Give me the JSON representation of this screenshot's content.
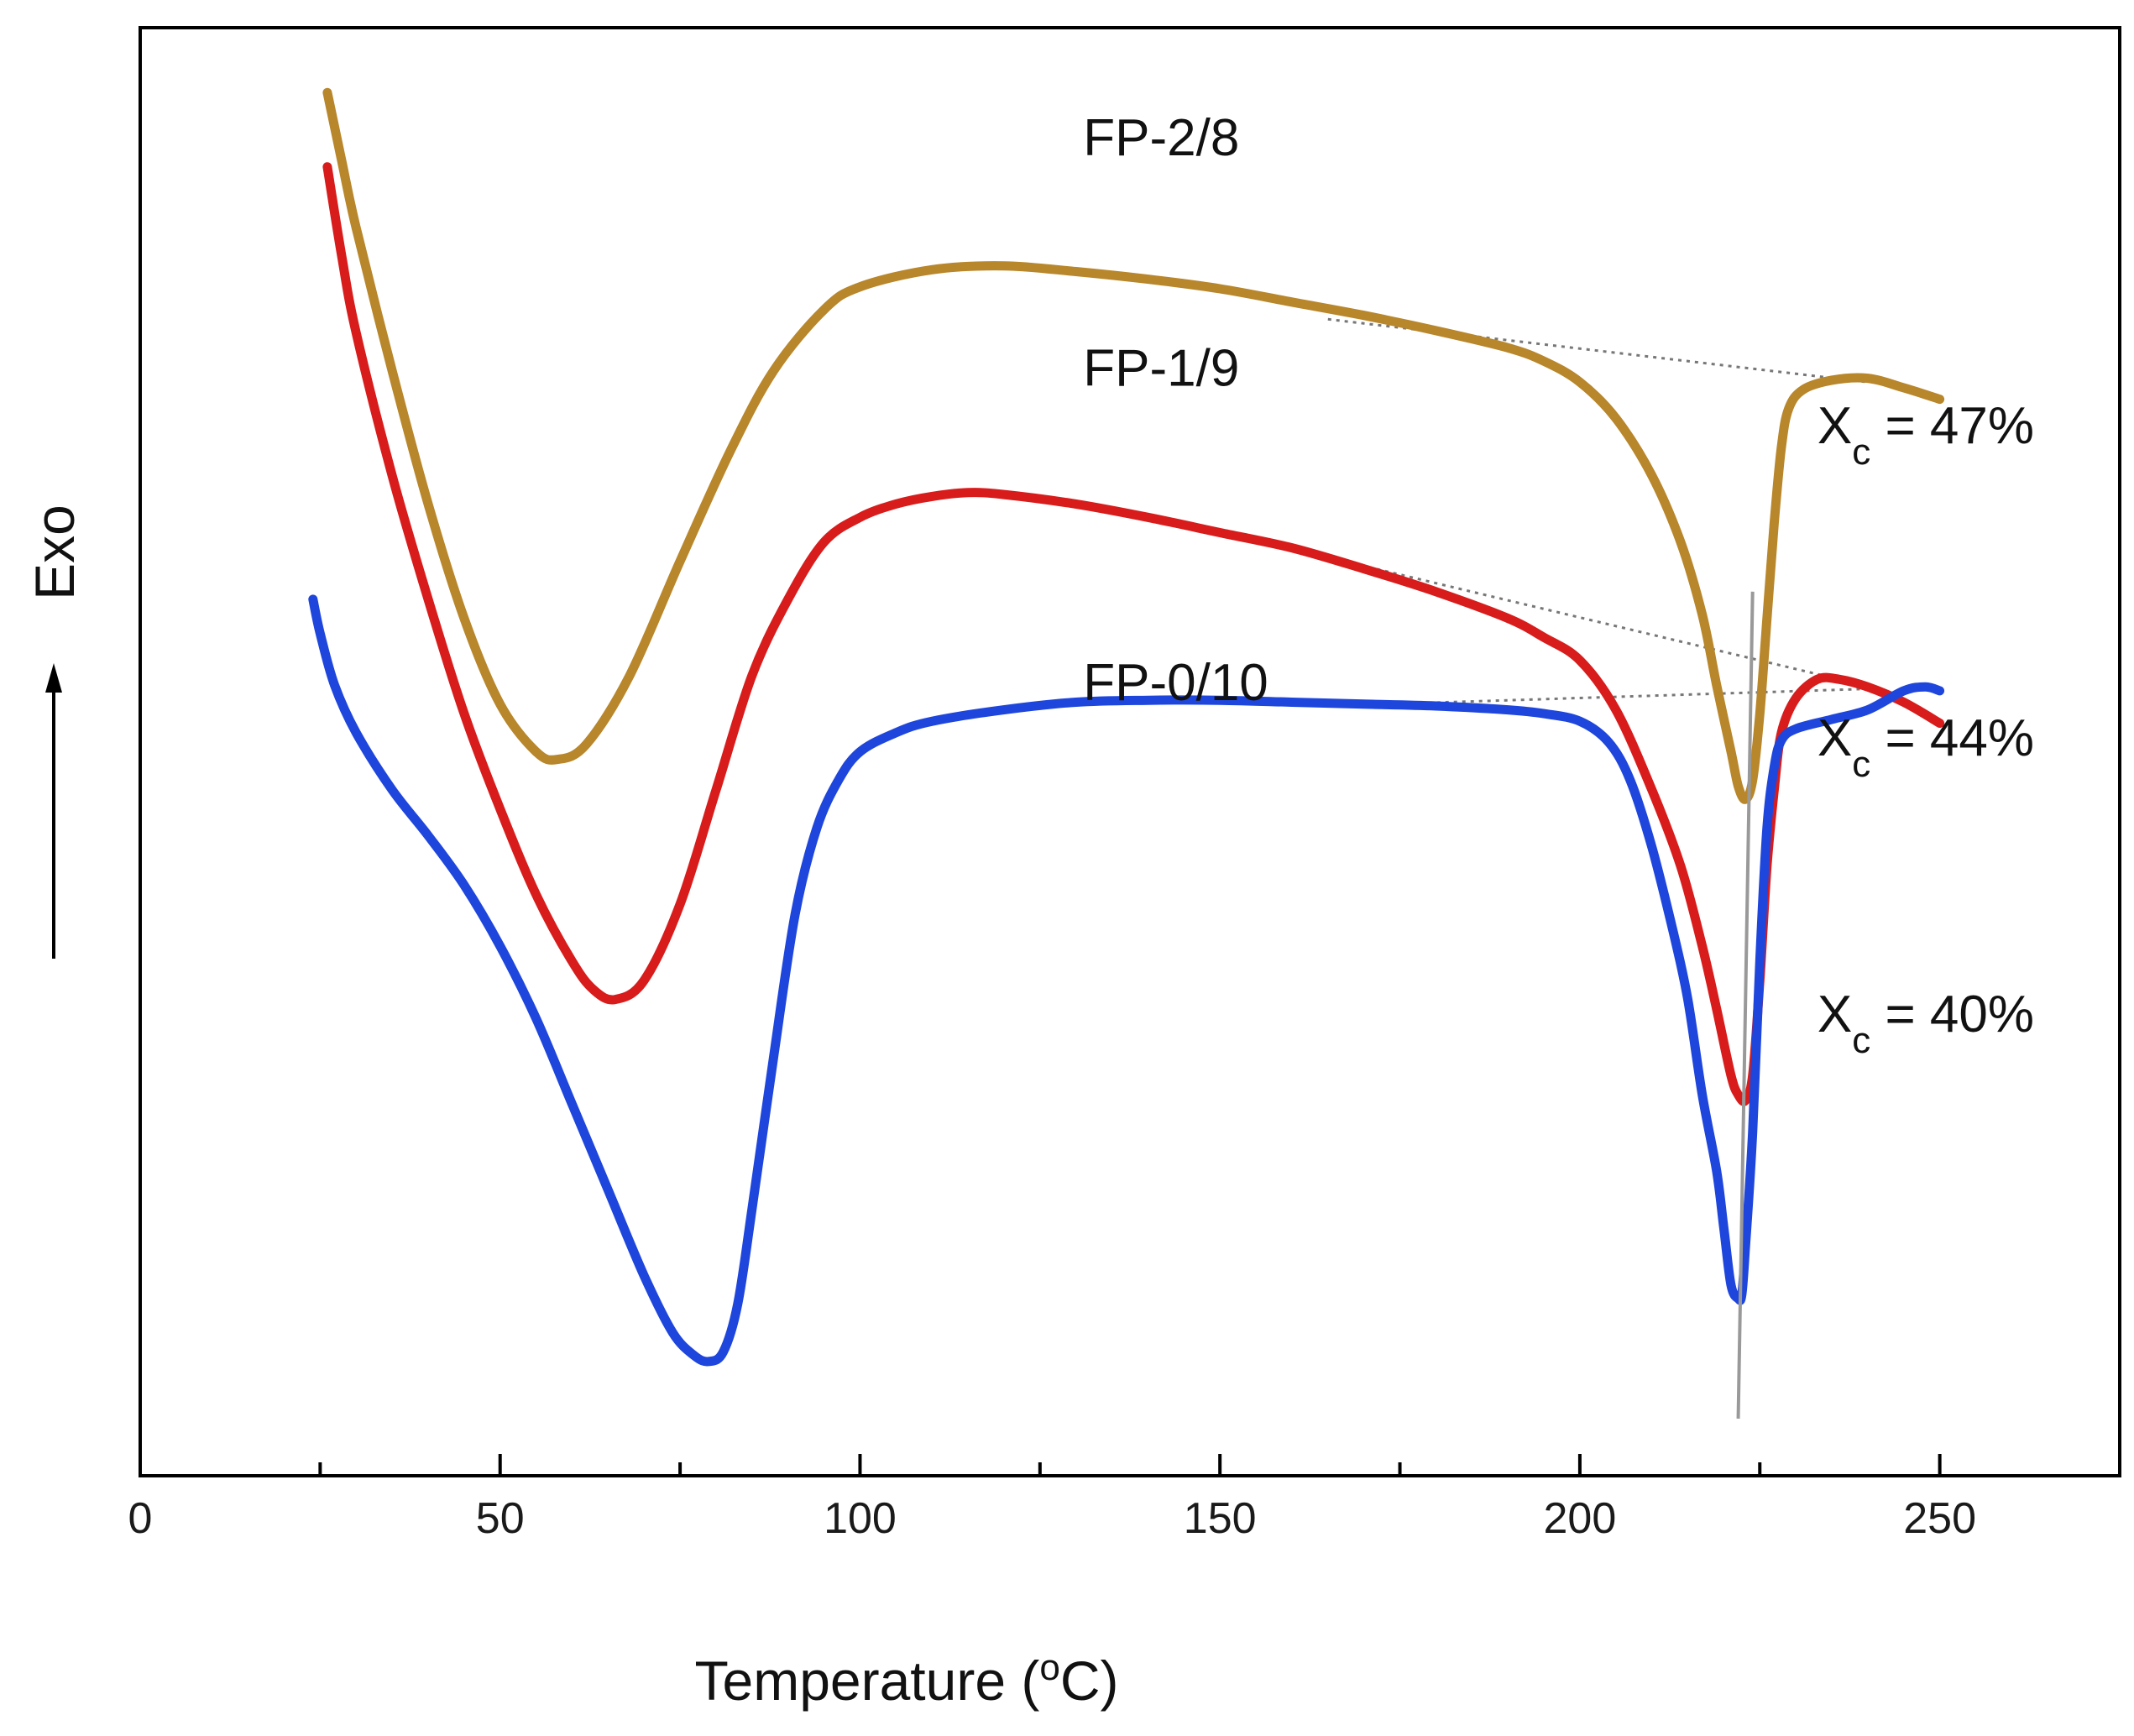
{
  "chart_data": {
    "type": "line",
    "title": "",
    "xlabel": "Temperature (",
    "xlabel_sup": "o",
    "xlabel_end": "C)",
    "ylabel": "Exo",
    "xlim": [
      0,
      275
    ],
    "x_ticks": [
      0,
      50,
      100,
      150,
      200,
      250
    ],
    "x_tick_labels": [
      "0",
      "50",
      "100",
      "150",
      "200",
      "250"
    ],
    "y_ticks_shown": false,
    "grid": false,
    "legend": "inline labels",
    "y_units": "arbitrary heat flow (exo up)",
    "series": [
      {
        "name": "FP-2/8",
        "color": "#b8862b",
        "points": [
          [
            26,
            1026
          ],
          [
            28,
            990
          ],
          [
            30,
            955
          ],
          [
            35,
            880
          ],
          [
            40,
            810
          ],
          [
            45,
            750
          ],
          [
            50,
            705
          ],
          [
            55,
            680
          ],
          [
            58,
            676
          ],
          [
            62,
            684
          ],
          [
            68,
            720
          ],
          [
            75,
            780
          ],
          [
            82,
            838
          ],
          [
            88,
            880
          ],
          [
            95,
            912
          ],
          [
            100,
            924
          ],
          [
            110,
            933
          ],
          [
            120,
            935
          ],
          [
            130,
            932
          ],
          [
            140,
            928
          ],
          [
            150,
            923
          ],
          [
            160,
            916
          ],
          [
            170,
            909
          ],
          [
            180,
            901
          ],
          [
            190,
            892
          ],
          [
            195,
            885
          ],
          [
            200,
            874
          ],
          [
            205,
            855
          ],
          [
            210,
            825
          ],
          [
            214,
            790
          ],
          [
            217,
            752
          ],
          [
            219,
            715
          ],
          [
            221,
            680
          ],
          [
            222,
            662
          ],
          [
            223,
            655
          ],
          [
            224,
            665
          ],
          [
            225,
            700
          ],
          [
            226,
            750
          ],
          [
            227,
            800
          ],
          [
            228,
            840
          ],
          [
            229,
            860
          ],
          [
            231,
            870
          ],
          [
            235,
            875
          ],
          [
            240,
            876
          ],
          [
            245,
            871
          ],
          [
            250,
            865
          ]
        ]
      },
      {
        "name": "FP-1/9",
        "color": "#d81c1c",
        "points": [
          [
            26,
            987
          ],
          [
            28,
            940
          ],
          [
            30,
            900
          ],
          [
            35,
            825
          ],
          [
            40,
            760
          ],
          [
            45,
            700
          ],
          [
            50,
            650
          ],
          [
            55,
            605
          ],
          [
            60,
            570
          ],
          [
            63,
            555
          ],
          [
            66,
            550
          ],
          [
            70,
            560
          ],
          [
            75,
            600
          ],
          [
            80,
            660
          ],
          [
            85,
            720
          ],
          [
            90,
            760
          ],
          [
            95,
            790
          ],
          [
            100,
            803
          ],
          [
            105,
            810
          ],
          [
            110,
            814
          ],
          [
            115,
            816
          ],
          [
            120,
            815
          ],
          [
            130,
            810
          ],
          [
            140,
            803
          ],
          [
            150,
            795
          ],
          [
            160,
            787
          ],
          [
            170,
            776
          ],
          [
            180,
            764
          ],
          [
            190,
            750
          ],
          [
            195,
            740
          ],
          [
            200,
            728
          ],
          [
            205,
            702
          ],
          [
            210,
            660
          ],
          [
            214,
            620
          ],
          [
            217,
            578
          ],
          [
            219,
            545
          ],
          [
            221,
            510
          ],
          [
            222,
            500
          ],
          [
            223,
            497
          ],
          [
            224,
            510
          ],
          [
            225,
            560
          ],
          [
            226,
            620
          ],
          [
            227,
            660
          ],
          [
            228,
            690
          ],
          [
            230,
            708
          ],
          [
            233,
            718
          ],
          [
            236,
            718
          ],
          [
            240,
            714
          ],
          [
            245,
            706
          ],
          [
            250,
            695
          ]
        ]
      },
      {
        "name": "FP-0/10",
        "color": "#1e46dc",
        "points": [
          [
            24,
            760
          ],
          [
            25,
            742
          ],
          [
            27,
            715
          ],
          [
            30,
            690
          ],
          [
            35,
            660
          ],
          [
            40,
            636
          ],
          [
            45,
            610
          ],
          [
            50,
            578
          ],
          [
            55,
            540
          ],
          [
            60,
            495
          ],
          [
            65,
            450
          ],
          [
            70,
            405
          ],
          [
            74,
            375
          ],
          [
            77,
            363
          ],
          [
            79,
            360
          ],
          [
            81,
            365
          ],
          [
            83,
            390
          ],
          [
            85,
            440
          ],
          [
            88,
            520
          ],
          [
            91,
            595
          ],
          [
            94,
            640
          ],
          [
            97,
            665
          ],
          [
            100,
            680
          ],
          [
            105,
            690
          ],
          [
            110,
            696
          ],
          [
            120,
            702
          ],
          [
            130,
            706
          ],
          [
            140,
            707
          ],
          [
            150,
            707
          ],
          [
            160,
            706
          ],
          [
            170,
            705
          ],
          [
            180,
            704
          ],
          [
            190,
            702
          ],
          [
            195,
            700
          ],
          [
            200,
            696
          ],
          [
            204,
            685
          ],
          [
            207,
            665
          ],
          [
            210,
            630
          ],
          [
            213,
            585
          ],
          [
            215,
            550
          ],
          [
            217,
            500
          ],
          [
            219,
            460
          ],
          [
            220,
            430
          ],
          [
            221,
            400
          ],
          [
            222,
            393
          ],
          [
            222.5,
            395
          ],
          [
            223,
            420
          ],
          [
            224,
            480
          ],
          [
            225,
            570
          ],
          [
            226,
            640
          ],
          [
            227,
            672
          ],
          [
            228,
            686
          ],
          [
            230,
            692
          ],
          [
            235,
            697
          ],
          [
            240,
            702
          ],
          [
            245,
            712
          ],
          [
            248,
            714
          ],
          [
            250,
            712
          ]
        ]
      }
    ],
    "baselines": [
      {
        "series": "FP-2/8",
        "points": [
          [
            165,
            907
          ],
          [
            240,
            874
          ]
        ]
      },
      {
        "series": "FP-1/9",
        "points": [
          [
            165,
            782
          ],
          [
            236,
            718
          ]
        ]
      },
      {
        "series": "FP-0/10",
        "points": [
          [
            165,
            704
          ],
          [
            240,
            713
          ]
        ]
      }
    ],
    "peak_line": {
      "points": [
        [
          222,
          330
        ],
        [
          224,
          764
        ]
      ]
    },
    "labels": [
      {
        "text": "FP-2/8",
        "x": 131,
        "y": 993
      },
      {
        "text": "FP-1/9",
        "x": 131,
        "y": 872
      },
      {
        "text": "FP-0/10",
        "x": 131,
        "y": 707
      }
    ],
    "annotations": [
      {
        "base": "X",
        "sub": "c",
        "rest": " = 47%",
        "x": 233,
        "y": 842
      },
      {
        "base": "X",
        "sub": "c",
        "rest": " = 44%",
        "x": 233,
        "y": 678
      },
      {
        "base": "X",
        "sub": "c",
        "rest": " = 40%",
        "x": 233,
        "y": 533
      }
    ]
  }
}
